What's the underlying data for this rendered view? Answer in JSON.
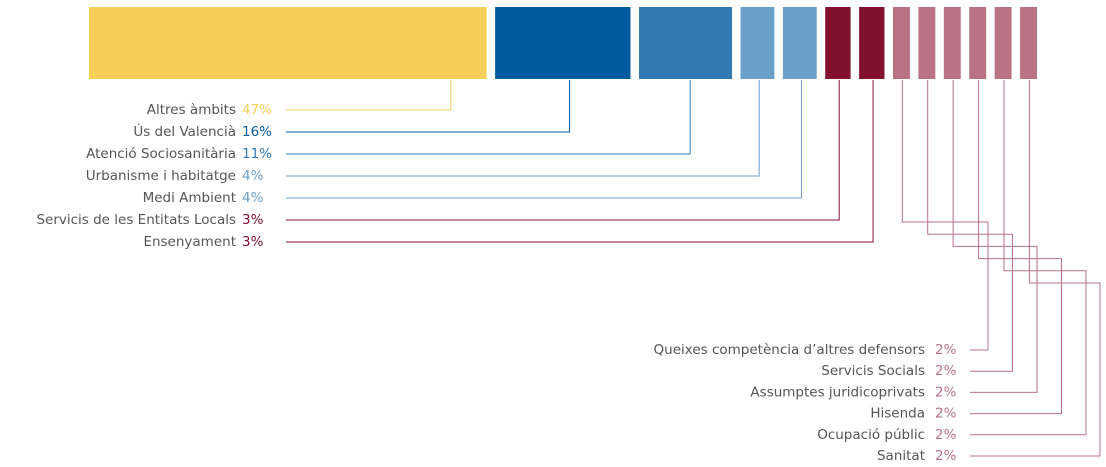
{
  "chart_data": {
    "type": "strip",
    "categories": [
      "Altres àmbits",
      "Ús del Valencià",
      "Atenció Sociosanitària",
      "Urbanisme i habitatge",
      "Medi Ambient",
      "Servicis de les Entitats Locals",
      "Ensenyament",
      "Queixes competència d’altres defensors",
      "Servicis Socials",
      "Assumptes juridicoprivats",
      "Hisenda",
      "Ocupació públic",
      "Sanitat"
    ],
    "values": [
      47,
      16,
      11,
      4,
      4,
      3,
      3,
      2,
      2,
      2,
      2,
      2,
      2
    ],
    "value_labels": [
      "47%",
      "16%",
      "11%",
      "4%",
      "4%",
      "3%",
      "3%",
      "2%",
      "2%",
      "2%",
      "2%",
      "2%",
      "2%"
    ],
    "colors": [
      "#f6cf58",
      "#005a9e",
      "#337ab3",
      "#6aa0c8",
      "#6aa0c8",
      "#82112e",
      "#82112e",
      "#b87282",
      "#b87282",
      "#b87282",
      "#b87282",
      "#b87282",
      "#b87282"
    ]
  }
}
